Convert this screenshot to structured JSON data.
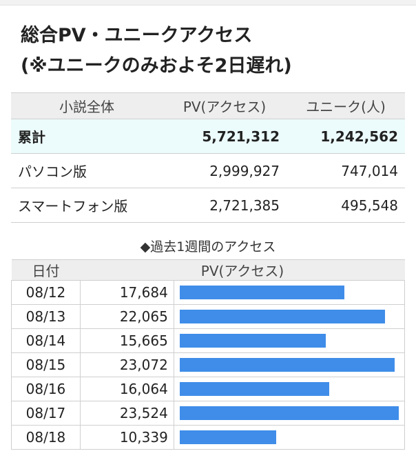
{
  "title_line1": "総合PV・ユニークアクセス",
  "title_line2": "(※ユニークのみおよそ2日遅れ)",
  "summary": {
    "headers": [
      "小説全体",
      "PV(アクセス)",
      "ユニーク(人)"
    ],
    "rows": [
      {
        "label": "累計",
        "pv": "5,721,312",
        "unique": "1,242,562"
      },
      {
        "label": "パソコン版",
        "pv": "2,999,927",
        "unique": "747,014"
      },
      {
        "label": "スマートフォン版",
        "pv": "2,721,385",
        "unique": "495,548"
      }
    ]
  },
  "weekly": {
    "title": "◆過去1週間のアクセス",
    "headers": [
      "日付",
      "PV(アクセス)"
    ],
    "bar_color": "#3f8de9",
    "max_value": 23524,
    "rows": [
      {
        "date": "08/12",
        "pv": "17,684",
        "value": 17684
      },
      {
        "date": "08/13",
        "pv": "22,065",
        "value": 22065
      },
      {
        "date": "08/14",
        "pv": "15,665",
        "value": 15665
      },
      {
        "date": "08/15",
        "pv": "23,072",
        "value": 23072
      },
      {
        "date": "08/16",
        "pv": "16,064",
        "value": 16064
      },
      {
        "date": "08/17",
        "pv": "23,524",
        "value": 23524
      },
      {
        "date": "08/18",
        "pv": "10,339",
        "value": 10339
      }
    ]
  }
}
